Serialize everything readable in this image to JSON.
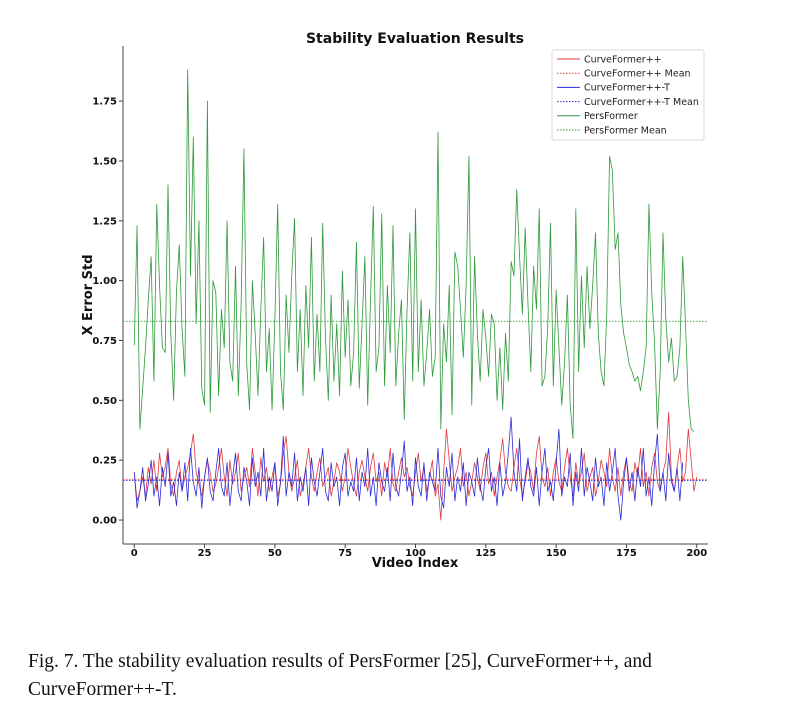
{
  "chart_data": {
    "type": "line",
    "title": "Stability Evaluation Results",
    "xlabel": "Video Index",
    "ylabel": "X Error Std",
    "xlim": [
      -4,
      204
    ],
    "ylim": [
      -0.1,
      1.98
    ],
    "xticks": [
      0,
      25,
      50,
      75,
      100,
      125,
      150,
      175,
      200
    ],
    "yticks": [
      0.0,
      0.25,
      0.5,
      0.75,
      1.0,
      1.25,
      1.5,
      1.75
    ],
    "ytick_labels": [
      "0.00",
      "0.25",
      "0.50",
      "0.75",
      "1.00",
      "1.25",
      "1.50",
      "1.75"
    ],
    "legend_position": "top-right",
    "series": [
      {
        "name": "CurveFormer++",
        "color": "#e0393e",
        "style": "solid",
        "x_start": 0,
        "values": [
          0.2,
          0.08,
          0.12,
          0.18,
          0.1,
          0.22,
          0.15,
          0.25,
          0.12,
          0.28,
          0.18,
          0.22,
          0.3,
          0.15,
          0.1,
          0.2,
          0.25,
          0.12,
          0.18,
          0.22,
          0.28,
          0.36,
          0.2,
          0.15,
          0.1,
          0.18,
          0.25,
          0.2,
          0.12,
          0.15,
          0.22,
          0.3,
          0.18,
          0.1,
          0.25,
          0.15,
          0.2,
          0.28,
          0.12,
          0.18,
          0.22,
          0.14,
          0.3,
          0.2,
          0.1,
          0.26,
          0.16,
          0.22,
          0.12,
          0.18,
          0.24,
          0.1,
          0.15,
          0.28,
          0.35,
          0.2,
          0.12,
          0.18,
          0.25,
          0.1,
          0.15,
          0.22,
          0.3,
          0.18,
          0.12,
          0.2,
          0.26,
          0.14,
          0.18,
          0.22,
          0.1,
          0.16,
          0.24,
          0.2,
          0.12,
          0.18,
          0.3,
          0.22,
          0.15,
          0.1,
          0.2,
          0.25,
          0.18,
          0.12,
          0.22,
          0.28,
          0.16,
          0.2,
          0.1,
          0.24,
          0.18,
          0.3,
          0.15,
          0.12,
          0.2,
          0.26,
          0.18,
          0.22,
          0.14,
          0.1,
          0.2,
          0.28,
          0.16,
          0.22,
          0.12,
          0.18,
          0.25,
          0.1,
          0.15,
          0.0,
          0.2,
          0.38,
          0.25,
          0.12,
          0.18,
          0.22,
          0.3,
          0.14,
          0.2,
          0.1,
          0.16,
          0.24,
          0.18,
          0.12,
          0.22,
          0.28,
          0.15,
          0.2,
          0.1,
          0.18,
          0.25,
          0.34,
          0.2,
          0.14,
          0.12,
          0.22,
          0.3,
          0.18,
          0.1,
          0.16,
          0.24,
          0.2,
          0.12,
          0.28,
          0.35,
          0.18,
          0.14,
          0.22,
          0.1,
          0.2,
          0.26,
          0.16,
          0.12,
          0.22,
          0.3,
          0.18,
          0.1,
          0.24,
          0.15,
          0.2,
          0.28,
          0.12,
          0.18,
          0.22,
          0.1,
          0.16,
          0.25,
          0.2,
          0.14,
          0.3,
          0.18,
          0.12,
          0.22,
          0.1,
          0.2,
          0.26,
          0.16,
          0.12,
          0.24,
          0.18,
          0.3,
          0.14,
          0.2,
          0.1,
          0.22,
          0.28,
          0.16,
          0.12,
          0.2,
          0.25,
          0.45,
          0.18,
          0.12,
          0.22,
          0.3,
          0.16,
          0.2,
          0.38,
          0.25,
          0.12,
          0.18
        ],
        "mean": 0.17
      },
      {
        "name": "CurveFormer++ Mean",
        "color": "#e0393e",
        "style": "dotted",
        "value": 0.17
      },
      {
        "name": "CurveFormer++-T",
        "color": "#2c2cd8",
        "style": "solid",
        "x_start": 0,
        "values": [
          0.2,
          0.05,
          0.12,
          0.22,
          0.08,
          0.15,
          0.25,
          0.1,
          0.18,
          0.06,
          0.22,
          0.14,
          0.28,
          0.1,
          0.16,
          0.06,
          0.2,
          0.12,
          0.24,
          0.08,
          0.3,
          0.16,
          0.1,
          0.22,
          0.05,
          0.18,
          0.26,
          0.12,
          0.08,
          0.2,
          0.3,
          0.14,
          0.1,
          0.24,
          0.06,
          0.18,
          0.28,
          0.12,
          0.08,
          0.22,
          0.16,
          0.06,
          0.26,
          0.14,
          0.2,
          0.1,
          0.3,
          0.08,
          0.18,
          0.12,
          0.24,
          0.06,
          0.16,
          0.35,
          0.1,
          0.2,
          0.14,
          0.28,
          0.08,
          0.18,
          0.12,
          0.22,
          0.06,
          0.26,
          0.16,
          0.1,
          0.2,
          0.3,
          0.12,
          0.08,
          0.24,
          0.14,
          0.18,
          0.06,
          0.22,
          0.28,
          0.1,
          0.16,
          0.12,
          0.26,
          0.08,
          0.2,
          0.14,
          0.3,
          0.1,
          0.18,
          0.06,
          0.24,
          0.16,
          0.12,
          0.22,
          0.08,
          0.28,
          0.14,
          0.1,
          0.2,
          0.33,
          0.12,
          0.18,
          0.06,
          0.26,
          0.14,
          0.1,
          0.24,
          0.08,
          0.2,
          0.16,
          0.12,
          0.3,
          0.1,
          0.05,
          0.22,
          0.14,
          0.28,
          0.08,
          0.18,
          0.12,
          0.24,
          0.06,
          0.2,
          0.16,
          0.1,
          0.26,
          0.14,
          0.08,
          0.22,
          0.3,
          0.12,
          0.18,
          0.06,
          0.24,
          0.1,
          0.16,
          0.28,
          0.43,
          0.2,
          0.12,
          0.34,
          0.08,
          0.18,
          0.26,
          0.14,
          0.1,
          0.22,
          0.06,
          0.2,
          0.3,
          0.12,
          0.16,
          0.08,
          0.24,
          0.38,
          0.1,
          0.18,
          0.14,
          0.28,
          0.06,
          0.2,
          0.12,
          0.3,
          0.1,
          0.22,
          0.16,
          0.08,
          0.26,
          0.14,
          0.18,
          0.06,
          0.24,
          0.12,
          0.2,
          0.3,
          0.1,
          0.0,
          0.16,
          0.26,
          0.12,
          0.2,
          0.08,
          0.22,
          0.14,
          0.3,
          0.1,
          0.18,
          0.06,
          0.24,
          0.36,
          0.12,
          0.2,
          0.08,
          0.28,
          0.16,
          0.12,
          0.22,
          0.08,
          0.24
        ],
        "mean": 0.165
      },
      {
        "name": "CurveFormer++-T Mean",
        "color": "#2c2cd8",
        "style": "dotted",
        "value": 0.165
      },
      {
        "name": "PersFormer",
        "color": "#2e9a3a",
        "style": "solid",
        "x_start": 0,
        "values": [
          0.73,
          1.23,
          0.38,
          0.55,
          0.72,
          0.92,
          1.1,
          0.58,
          1.32,
          0.98,
          0.72,
          0.7,
          1.4,
          0.78,
          0.5,
          0.95,
          1.15,
          0.8,
          0.6,
          1.88,
          1.02,
          1.6,
          0.82,
          1.25,
          0.55,
          0.48,
          1.75,
          0.45,
          1.0,
          0.95,
          0.52,
          0.88,
          0.72,
          1.25,
          0.66,
          0.58,
          1.06,
          0.52,
          0.9,
          1.55,
          0.65,
          0.46,
          1.0,
          0.78,
          0.52,
          0.88,
          1.18,
          0.62,
          0.8,
          0.46,
          0.84,
          1.32,
          0.62,
          0.46,
          0.94,
          0.7,
          1.02,
          1.26,
          0.62,
          0.88,
          0.52,
          0.98,
          0.72,
          1.18,
          0.58,
          0.86,
          0.62,
          1.24,
          0.76,
          0.5,
          0.94,
          0.58,
          0.82,
          0.52,
          1.04,
          0.68,
          0.92,
          0.56,
          0.7,
          1.16,
          0.55,
          0.82,
          1.1,
          0.48,
          0.92,
          1.31,
          0.62,
          0.72,
          1.28,
          0.56,
          0.98,
          0.7,
          1.23,
          0.56,
          0.78,
          0.92,
          0.42,
          0.88,
          1.2,
          0.58,
          1.3,
          0.62,
          0.92,
          0.56,
          0.7,
          0.88,
          0.6,
          0.68,
          1.62,
          0.38,
          0.82,
          0.66,
          0.98,
          0.44,
          1.12,
          1.06,
          0.88,
          0.68,
          0.98,
          1.52,
          0.48,
          1.1,
          0.78,
          0.58,
          0.88,
          0.76,
          0.6,
          0.86,
          0.82,
          0.5,
          0.72,
          0.46,
          0.78,
          0.58,
          1.08,
          1.02,
          1.38,
          1.1,
          0.86,
          1.22,
          0.9,
          0.62,
          1.06,
          0.88,
          1.3,
          0.56,
          0.6,
          0.8,
          1.24,
          0.56,
          0.96,
          0.72,
          0.48,
          0.66,
          0.94,
          0.48,
          0.34,
          1.3,
          0.62,
          1.02,
          0.72,
          1.06,
          0.8,
          0.98,
          1.2,
          0.78,
          0.62,
          0.56,
          0.86,
          1.52,
          1.46,
          1.13,
          1.2,
          0.9,
          0.78,
          0.72,
          0.65,
          0.62,
          0.58,
          0.6,
          0.54,
          0.62,
          0.72,
          1.32,
          0.95,
          0.74,
          0.38,
          0.62,
          1.2,
          0.84,
          0.66,
          0.76,
          0.58,
          0.6,
          0.72,
          1.1,
          0.82,
          0.5,
          0.38,
          0.37
        ],
        "mean": 0.83
      },
      {
        "name": "PersFormer Mean",
        "color": "#2e9a3a",
        "style": "dotted",
        "value": 0.83
      }
    ]
  },
  "caption": "Fig. 7.  The stability evaluation results of PersFormer [25], CurveFormer++, and CurveFormer++-T."
}
